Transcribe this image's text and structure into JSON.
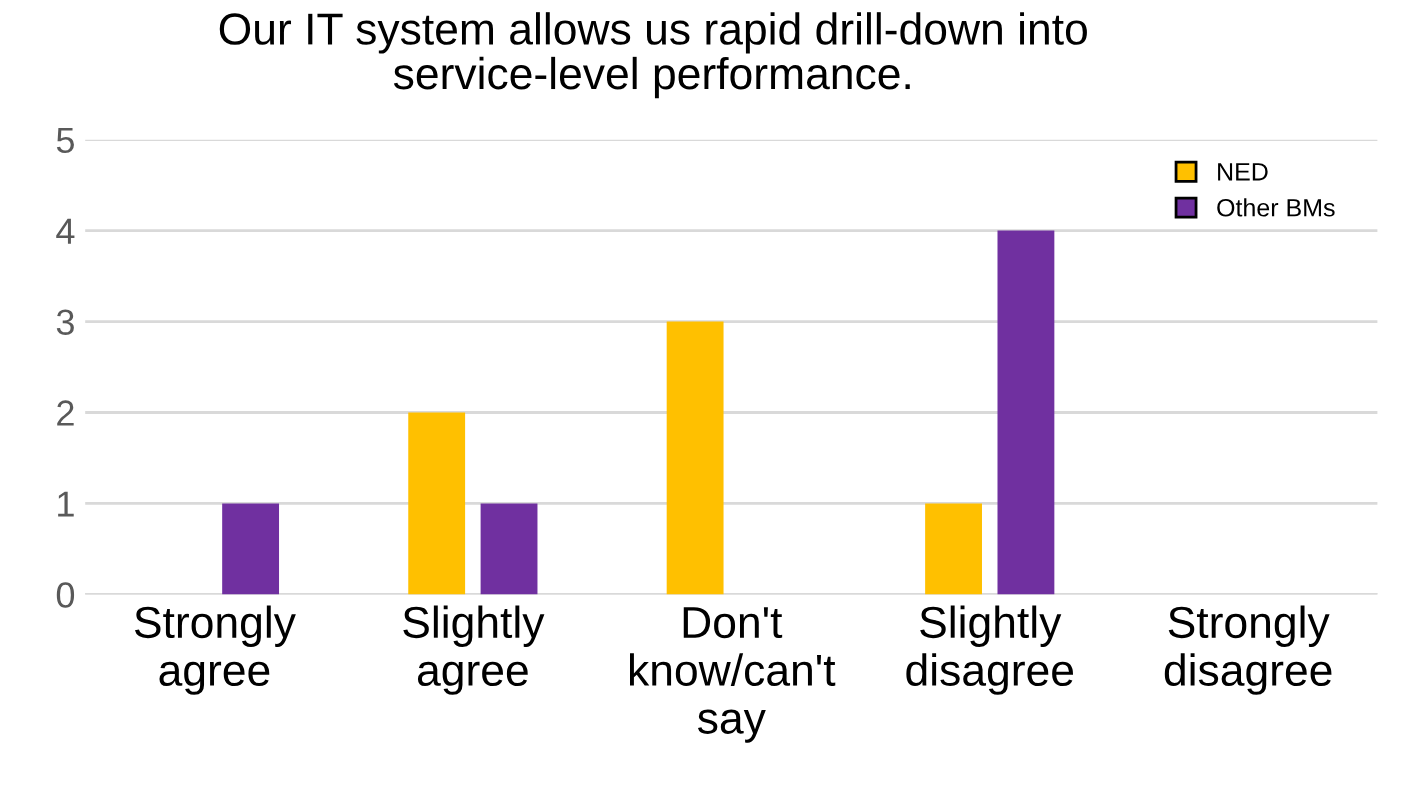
{
  "chart_data": {
    "type": "bar",
    "title": "Our IT system allows us rapid drill-down into\nservice-level performance.",
    "categories": [
      "Strongly\nagree",
      "Slightly\nagree",
      "Don't\nknow/can't\nsay",
      "Slightly\ndisagree",
      "Strongly\ndisagree"
    ],
    "series": [
      {
        "name": "NED",
        "color": "#ffc000",
        "values": [
          0,
          2,
          3,
          1,
          0
        ]
      },
      {
        "name": "Other BMs",
        "color": "#7030a0",
        "values": [
          1,
          1,
          0,
          4,
          0
        ]
      }
    ],
    "ylim": [
      0,
      5
    ],
    "yticks": [
      0,
      1,
      2,
      3,
      4,
      5
    ],
    "grid": "y",
    "legend": "top right"
  }
}
